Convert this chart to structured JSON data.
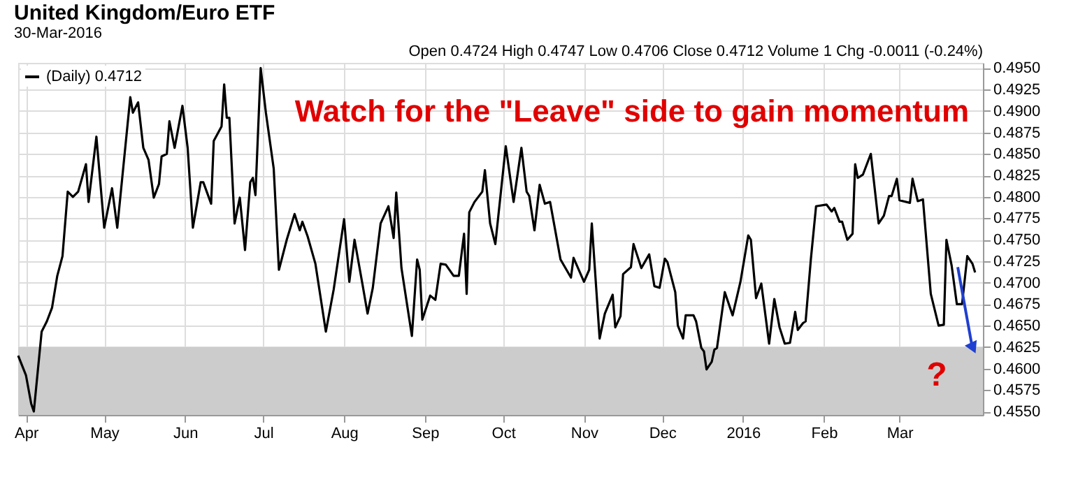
{
  "chart_data": {
    "type": "line",
    "title": "United Kingdom/Euro ETF",
    "subtitle": "30-Mar-2016",
    "annotations": [
      "Open 0.4724  High 0.4747  Low 0.4706  Close 0.4712  Volume 1  Chg -0.0011 (-0.24%)",
      "Watch for the \"Leave\" side to gain momentum",
      "?"
    ],
    "series": [
      {
        "name": "(Daily) 0.4712",
        "color": "#000000",
        "x": [
          "2015-03-29",
          "2015-04-01",
          "2015-04-03",
          "2015-04-04",
          "2015-04-07",
          "2015-04-09",
          "2015-04-11",
          "2015-04-13",
          "2015-04-15",
          "2015-04-17",
          "2015-04-19",
          "2015-04-21",
          "2015-04-24",
          "2015-04-25",
          "2015-04-28",
          "2015-05-01",
          "2015-05-04",
          "2015-05-06",
          "2015-05-11",
          "2015-05-12",
          "2015-05-14",
          "2015-05-16",
          "2015-05-18",
          "2015-05-20",
          "2015-05-22",
          "2015-05-23",
          "2015-05-25",
          "2015-05-26",
          "2015-05-28",
          "2015-05-31",
          "2015-06-02",
          "2015-06-04",
          "2015-06-07",
          "2015-06-08",
          "2015-06-11",
          "2015-06-12",
          "2015-06-15",
          "2015-06-16",
          "2015-06-17",
          "2015-06-18",
          "2015-06-20",
          "2015-06-22",
          "2015-06-24",
          "2015-06-26",
          "2015-06-27",
          "2015-06-28",
          "2015-06-30",
          "2015-07-02",
          "2015-07-05",
          "2015-07-07",
          "2015-07-10",
          "2015-07-13",
          "2015-07-15",
          "2015-07-16",
          "2015-07-18",
          "2015-07-21",
          "2015-07-25",
          "2015-07-28",
          "2015-08-01",
          "2015-08-03",
          "2015-08-05",
          "2015-08-08",
          "2015-08-10",
          "2015-08-12",
          "2015-08-15",
          "2015-08-18",
          "2015-08-20",
          "2015-08-21",
          "2015-08-23",
          "2015-08-27",
          "2015-08-29",
          "2015-08-30",
          "2015-08-31",
          "2015-09-03",
          "2015-09-05",
          "2015-09-07",
          "2015-09-09",
          "2015-09-12",
          "2015-09-14",
          "2015-09-16",
          "2015-09-17",
          "2015-09-18",
          "2015-09-20",
          "2015-09-23",
          "2015-09-24",
          "2015-09-26",
          "2015-09-28",
          "2015-10-02",
          "2015-10-05",
          "2015-10-08",
          "2015-10-10",
          "2015-10-11",
          "2015-10-13",
          "2015-10-15",
          "2015-10-17",
          "2015-10-19",
          "2015-10-23",
          "2015-10-27",
          "2015-10-28",
          "2015-11-01",
          "2015-11-03",
          "2015-11-04",
          "2015-11-07",
          "2015-11-09",
          "2015-11-12",
          "2015-11-13",
          "2015-11-15",
          "2015-11-16",
          "2015-11-19",
          "2015-11-20",
          "2015-11-23",
          "2015-11-26",
          "2015-11-28",
          "2015-11-30",
          "2015-12-02",
          "2015-12-03",
          "2015-12-06",
          "2015-12-07",
          "2015-12-09",
          "2015-12-10",
          "2015-12-13",
          "2015-12-14",
          "2015-12-16",
          "2015-12-17",
          "2015-12-18",
          "2015-12-20",
          "2015-12-21",
          "2015-12-22",
          "2015-12-25",
          "2015-12-28",
          "2015-12-31",
          "2016-01-03",
          "2016-01-04",
          "2016-01-06",
          "2016-01-08",
          "2016-01-11",
          "2016-01-13",
          "2016-01-15",
          "2016-01-17",
          "2016-01-19",
          "2016-01-21",
          "2016-01-22",
          "2016-01-24",
          "2016-01-25",
          "2016-01-27",
          "2016-01-29",
          "2016-02-02",
          "2016-02-04",
          "2016-02-05",
          "2016-02-07",
          "2016-02-08",
          "2016-02-10",
          "2016-02-12",
          "2016-02-13",
          "2016-02-14",
          "2016-02-16",
          "2016-02-19",
          "2016-02-22",
          "2016-02-24",
          "2016-02-26",
          "2016-02-27",
          "2016-02-29",
          "2016-03-01",
          "2016-03-05",
          "2016-03-06",
          "2016-03-08",
          "2016-03-10",
          "2016-03-13",
          "2016-03-16",
          "2016-03-18",
          "2016-03-19",
          "2016-03-21",
          "2016-03-23",
          "2016-03-25",
          "2016-03-27",
          "2016-03-29",
          "2016-03-30"
        ],
        "values": [
          0.4615,
          0.4592,
          0.4559,
          0.455,
          0.4643,
          0.4655,
          0.4671,
          0.4708,
          0.4731,
          0.4806,
          0.48,
          0.4806,
          0.4838,
          0.4794,
          0.487,
          0.4764,
          0.481,
          0.4764,
          0.4916,
          0.4898,
          0.491,
          0.4857,
          0.4843,
          0.4799,
          0.4815,
          0.4847,
          0.485,
          0.4888,
          0.4857,
          0.4906,
          0.4857,
          0.4764,
          0.4817,
          0.4817,
          0.4792,
          0.4865,
          0.4882,
          0.4931,
          0.4892,
          0.4892,
          0.4769,
          0.4799,
          0.4738,
          0.4817,
          0.4822,
          0.4802,
          0.495,
          0.4898,
          0.4833,
          0.4715,
          0.475,
          0.478,
          0.4761,
          0.4771,
          0.4754,
          0.4722,
          0.4643,
          0.4692,
          0.4774,
          0.4701,
          0.475,
          0.4699,
          0.4664,
          0.4694,
          0.4769,
          0.4789,
          0.4752,
          0.4805,
          0.4717,
          0.4638,
          0.4727,
          0.4715,
          0.4657,
          0.4685,
          0.468,
          0.4722,
          0.4721,
          0.4708,
          0.4708,
          0.4757,
          0.4687,
          0.4782,
          0.4794,
          0.4806,
          0.4831,
          0.4769,
          0.4745,
          0.4859,
          0.4794,
          0.4857,
          0.4806,
          0.4801,
          0.4761,
          0.4814,
          0.4792,
          0.4794,
          0.4727,
          0.4706,
          0.4729,
          0.4701,
          0.4715,
          0.4769,
          0.4635,
          0.4664,
          0.4686,
          0.4648,
          0.4661,
          0.471,
          0.4718,
          0.4745,
          0.4717,
          0.4733,
          0.4696,
          0.4694,
          0.4728,
          0.4724,
          0.4689,
          0.465,
          0.4635,
          0.4662,
          0.4662,
          0.4655,
          0.4624,
          0.462,
          0.4599,
          0.4608,
          0.4622,
          0.4624,
          0.4689,
          0.4662,
          0.4701,
          0.4755,
          0.475,
          0.4682,
          0.4699,
          0.4629,
          0.4681,
          0.4648,
          0.4629,
          0.463,
          0.4666,
          0.4645,
          0.4653,
          0.4655,
          0.4727,
          0.4789,
          0.4791,
          0.4783,
          0.4787,
          0.4771,
          0.4771,
          0.475,
          0.4757,
          0.4838,
          0.4822,
          0.4826,
          0.485,
          0.4769,
          0.4778,
          0.4801,
          0.4801,
          0.4821,
          0.4796,
          0.4793,
          0.4821,
          0.4795,
          0.4797,
          0.4687,
          0.465,
          0.4651,
          0.475,
          0.472,
          0.4675,
          0.4675,
          0.4731,
          0.4722,
          0.4712
        ]
      }
    ],
    "xlim": [
      "2015-03-29",
      "2016-04-02"
    ],
    "xticks": [
      {
        "value": "2015-04-01",
        "label": "Apr"
      },
      {
        "value": "2015-05-01",
        "label": "May"
      },
      {
        "value": "2015-06-01",
        "label": "Jun"
      },
      {
        "value": "2015-07-01",
        "label": "Jul"
      },
      {
        "value": "2015-08-01",
        "label": "Aug"
      },
      {
        "value": "2015-09-01",
        "label": "Sep"
      },
      {
        "value": "2015-10-01",
        "label": "Oct"
      },
      {
        "value": "2015-11-01",
        "label": "Nov"
      },
      {
        "value": "2015-12-01",
        "label": "Dec"
      },
      {
        "value": "2016-01-01",
        "label": "2016"
      },
      {
        "value": "2016-02-01",
        "label": "Feb"
      },
      {
        "value": "2016-03-01",
        "label": "Mar"
      }
    ],
    "ylim": [
      0.4546,
      0.4956
    ],
    "yticks": [
      {
        "value": 0.455,
        "label": "0.4550"
      },
      {
        "value": 0.4575,
        "label": "0.4575"
      },
      {
        "value": 0.46,
        "label": "0.4600"
      },
      {
        "value": 0.4625,
        "label": "0.4625"
      },
      {
        "value": 0.465,
        "label": "0.4650"
      },
      {
        "value": 0.4675,
        "label": "0.4675"
      },
      {
        "value": 0.47,
        "label": "0.4700"
      },
      {
        "value": 0.4725,
        "label": "0.4725"
      },
      {
        "value": 0.475,
        "label": "0.4750"
      },
      {
        "value": 0.4775,
        "label": "0.4775"
      },
      {
        "value": 0.48,
        "label": "0.4800"
      },
      {
        "value": 0.4825,
        "label": "0.4825"
      },
      {
        "value": 0.485,
        "label": "0.4850"
      },
      {
        "value": 0.4875,
        "label": "0.4875"
      },
      {
        "value": 0.49,
        "label": "0.4900"
      },
      {
        "value": 0.4925,
        "label": "0.4925"
      },
      {
        "value": 0.495,
        "label": "0.4950"
      }
    ],
    "bands": [
      {
        "axis": "y",
        "from": 0.4546,
        "to": 0.4625,
        "color": "#cccccc"
      }
    ],
    "grid": true,
    "legend": "top left",
    "line_style": "solid",
    "marker": "none"
  }
}
